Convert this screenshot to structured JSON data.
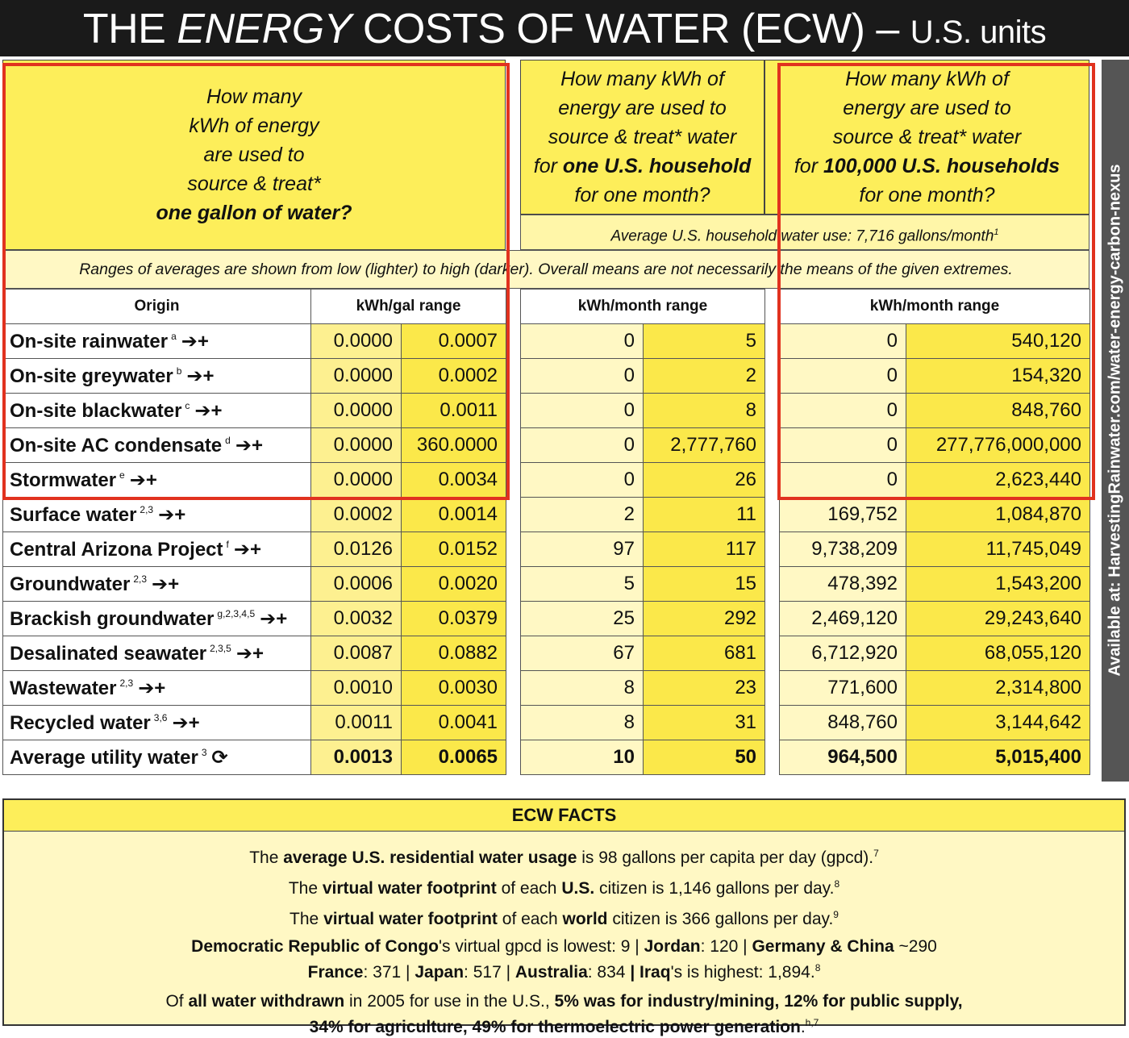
{
  "title": {
    "prefix": "THE",
    "emph": "ENERGY",
    "main": "COSTS OF WATER (ECW)",
    "dash": "–",
    "suffix": "U.S. units"
  },
  "headers": {
    "per_gallon": {
      "l1": "How many",
      "l2": "kWh of energy",
      "l3": "are used to",
      "l4": "source & treat*",
      "l5": "one gallon of water?"
    },
    "per_household": {
      "l1": "How many kWh of",
      "l2": "energy are used to",
      "l3": "source & treat* water",
      "l4a": "for",
      "l4b": "one U.S. household",
      "l5": "for one month?"
    },
    "per_100k": {
      "l1": "How many kWh of",
      "l2": "energy are used to",
      "l3": "source & treat* water",
      "l4a": "for",
      "l4b": "100,000 U.S. households",
      "l5": "for one month?"
    }
  },
  "household_note": {
    "text": "Average U.S. household water use: 7,716 gallons/month",
    "sup": "1"
  },
  "range_note": "Ranges of averages are shown from low (lighter) to high (darker). Overall means are not necessarily the means of the given extremes.",
  "columns": {
    "origin": "Origin",
    "gal": "kWh/gal range",
    "hh": "kWh/month range",
    "hh100k": "kWh/month range"
  },
  "rows": [
    {
      "origin": "On-site rainwater",
      "sup": "a",
      "sym": "➔+",
      "gal_low": "0.0000",
      "gal_high": "0.0007",
      "hh_low": "0",
      "hh_high": "5",
      "k_low": "0",
      "k_high": "540,120"
    },
    {
      "origin": "On-site greywater",
      "sup": "b",
      "sym": "➔+",
      "gal_low": "0.0000",
      "gal_high": "0.0002",
      "hh_low": "0",
      "hh_high": "2",
      "k_low": "0",
      "k_high": "154,320"
    },
    {
      "origin": "On-site blackwater",
      "sup": "c",
      "sym": "➔+",
      "gal_low": "0.0000",
      "gal_high": "0.0011",
      "hh_low": "0",
      "hh_high": "8",
      "k_low": "0",
      "k_high": "848,760"
    },
    {
      "origin": "On-site AC condensate",
      "sup": "d",
      "sym": "➔+",
      "gal_low": "0.0000",
      "gal_high": "360.0000",
      "hh_low": "0",
      "hh_high": "2,777,760",
      "k_low": "0",
      "k_high": "277,776,000,000"
    },
    {
      "origin": "Stormwater",
      "sup": "e",
      "sym": "➔+",
      "gal_low": "0.0000",
      "gal_high": "0.0034",
      "hh_low": "0",
      "hh_high": "26",
      "k_low": "0",
      "k_high": "2,623,440"
    },
    {
      "origin": "Surface water",
      "sup": "2,3",
      "sym": "➔+",
      "gal_low": "0.0002",
      "gal_high": "0.0014",
      "hh_low": "2",
      "hh_high": "11",
      "k_low": "169,752",
      "k_high": "1,084,870"
    },
    {
      "origin": "Central Arizona Project",
      "sup": "f",
      "sym": "➔+",
      "gal_low": "0.0126",
      "gal_high": "0.0152",
      "hh_low": "97",
      "hh_high": "117",
      "k_low": "9,738,209",
      "k_high": "11,745,049"
    },
    {
      "origin": "Groundwater",
      "sup": "2,3",
      "sym": "➔+",
      "gal_low": "0.0006",
      "gal_high": "0.0020",
      "hh_low": "5",
      "hh_high": "15",
      "k_low": "478,392",
      "k_high": "1,543,200"
    },
    {
      "origin": "Brackish groundwater",
      "sup": "g,2,3,4,5",
      "sym": "➔+",
      "gal_low": "0.0032",
      "gal_high": "0.0379",
      "hh_low": "25",
      "hh_high": "292",
      "k_low": "2,469,120",
      "k_high": "29,243,640"
    },
    {
      "origin": "Desalinated seawater",
      "sup": "2,3,5",
      "sym": "➔+",
      "gal_low": "0.0087",
      "gal_high": "0.0882",
      "hh_low": "67",
      "hh_high": "681",
      "k_low": "6,712,920",
      "k_high": "68,055,120"
    },
    {
      "origin": "Wastewater",
      "sup": "2,3",
      "sym": "➔+",
      "gal_low": "0.0010",
      "gal_high": "0.0030",
      "hh_low": "8",
      "hh_high": "23",
      "k_low": "771,600",
      "k_high": "2,314,800"
    },
    {
      "origin": "Recycled water",
      "sup": "3,6",
      "sym": "➔+",
      "gal_low": "0.0011",
      "gal_high": "0.0041",
      "hh_low": "8",
      "hh_high": "31",
      "k_low": "848,760",
      "k_high": "3,144,642"
    },
    {
      "origin": "Average utility water",
      "sup": "3",
      "sym": "⟳",
      "gal_low": "0.0013",
      "gal_high": "0.0065",
      "hh_low": "10",
      "hh_high": "50",
      "k_low": "964,500",
      "k_high": "5,015,400"
    }
  ],
  "sidebar": "Available at: HarvestingRainwater.com/water-energy-carbon-nexus",
  "facts": {
    "heading": "ECW FACTS",
    "f1": {
      "a": "The",
      "b": "average U.S. residential water usage",
      "c": "is 98 gallons per capita per day (gpcd).",
      "sup": "7"
    },
    "f2": {
      "a": "The",
      "b": "virtual water footprint",
      "c": "of each",
      "d": "U.S.",
      "e": "citizen is 1,146 gallons per day.",
      "sup": "8"
    },
    "f3": {
      "a": "The",
      "b": "virtual water footprint",
      "c": "of each",
      "d": "world",
      "e": "citizen is 366 gallons per day.",
      "sup": "9"
    },
    "f4": {
      "a": "Democratic Republic of Congo",
      "b": "'s virtual gpcd is lowest: 9 |",
      "c": "Jordan",
      "d": ": 120 |",
      "e": "Germany & China",
      "f": "~290"
    },
    "f5": {
      "a": "France",
      "b": ": 371 |",
      "c": "Japan",
      "d": ": 517 |",
      "e": "Australia",
      "f": ": 834",
      "g": "| Iraq",
      "h": "'s is highest: 1,894.",
      "sup": "8"
    },
    "f6": {
      "a": "Of",
      "b": "all water withdrawn",
      "c": "in 2005 for use in the U.S.,",
      "d": "5% was for industry/mining, 12% for public supply,"
    },
    "f7": {
      "a": "34% for agriculture, 49% for thermoelectric power generation",
      "b": ".",
      "sup": "h,7"
    }
  }
}
